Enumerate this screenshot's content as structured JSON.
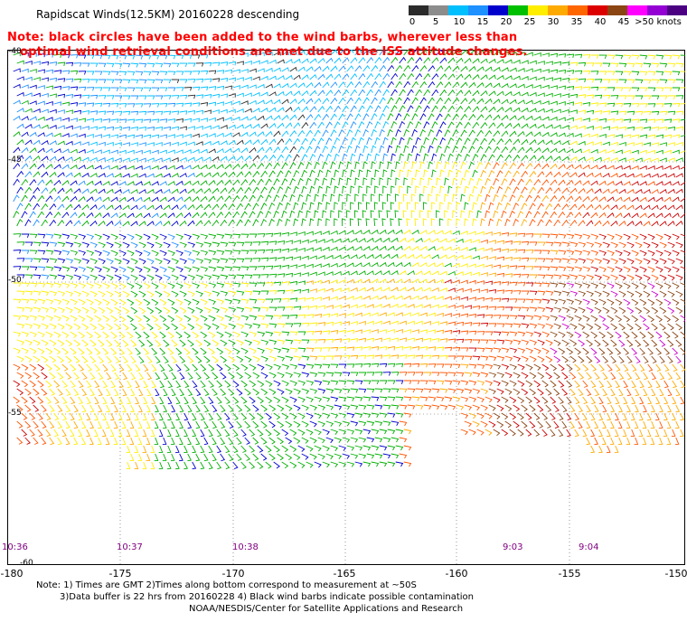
{
  "title": "Rapidscat Winds(12.5KM) 20160228 descending",
  "note": {
    "line1": "Note: black circles have been added to the wind barbs, wherever less than",
    "line2": "optimal wind retrieval conditions are met due to the ISS attitude changes."
  },
  "legend": {
    "labels": [
      "0",
      "5",
      "10",
      "15",
      "20",
      "25",
      "30",
      "35",
      "40",
      "45",
      ">50 knots"
    ],
    "colors": [
      "#2b2b2b",
      "#8c8c8c",
      "#00bfff",
      "#1e90ff",
      "#0000cd",
      "#00c000",
      "#ffee00",
      "#ffaa00",
      "#ff6600",
      "#dd0000",
      "#8b4513",
      "#ff00ff",
      "#9400d3",
      "#4b0082"
    ]
  },
  "axes": {
    "lat_labels": [
      "-40",
      "-45",
      "-50",
      "-55",
      "-60"
    ],
    "lon_labels": [
      "-180",
      "-175",
      "-170",
      "-165",
      "-160",
      "-155",
      "-150"
    ]
  },
  "times": [
    "10:36",
    "10:37",
    "10:38",
    "9:03",
    "9:04"
  ],
  "footnotes": {
    "line1": "Note: 1) Times are GMT 2)Times along bottom correspond to measurement at ~50S",
    "line2": "3)Data buffer is 22 hrs from 20160228 4) Black wind barbs indicate possible contamination",
    "line3": "NOAA/NESDIS/Center for Satellite Applications and Research"
  }
}
